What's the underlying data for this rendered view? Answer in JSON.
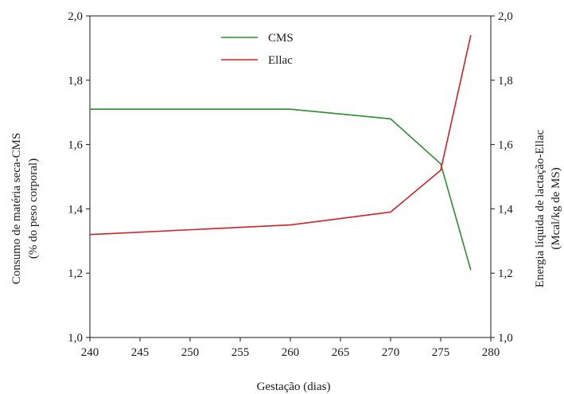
{
  "chart_data": {
    "type": "line",
    "xlabel": "Gestação (dias)",
    "ylabel_left": [
      "Consumo de matéria seca-CMS",
      "(% do peso corporal)"
    ],
    "ylabel_right": [
      "Energia líquida de lactação-Ellac",
      "(Mcal/kg de MS)"
    ],
    "xlim": [
      240,
      280
    ],
    "ylim": [
      1.0,
      2.0
    ],
    "x_ticks": [
      "240",
      "245",
      "250",
      "255",
      "260",
      "265",
      "270",
      "275",
      "280"
    ],
    "x_tick_values": [
      240,
      245,
      250,
      255,
      260,
      265,
      270,
      275,
      280
    ],
    "y_ticks": [
      "1,0",
      "1,2",
      "1,4",
      "1,6",
      "1,8",
      "2,0"
    ],
    "y_tick_values": [
      1.0,
      1.2,
      1.4,
      1.6,
      1.8,
      2.0
    ],
    "grid": false,
    "legend_position": "top-center",
    "series": [
      {
        "name": "CMS",
        "color": "#2e8b2e",
        "axis": "left",
        "points": [
          [
            240,
            1.71
          ],
          [
            260,
            1.71
          ],
          [
            270,
            1.68
          ],
          [
            275,
            1.54
          ],
          [
            278,
            1.21
          ]
        ]
      },
      {
        "name": "Ellac",
        "color": "#cc2229",
        "axis": "right",
        "points": [
          [
            240,
            1.32
          ],
          [
            260,
            1.35
          ],
          [
            270,
            1.39
          ],
          [
            275,
            1.52
          ],
          [
            278,
            1.94
          ]
        ]
      }
    ]
  }
}
